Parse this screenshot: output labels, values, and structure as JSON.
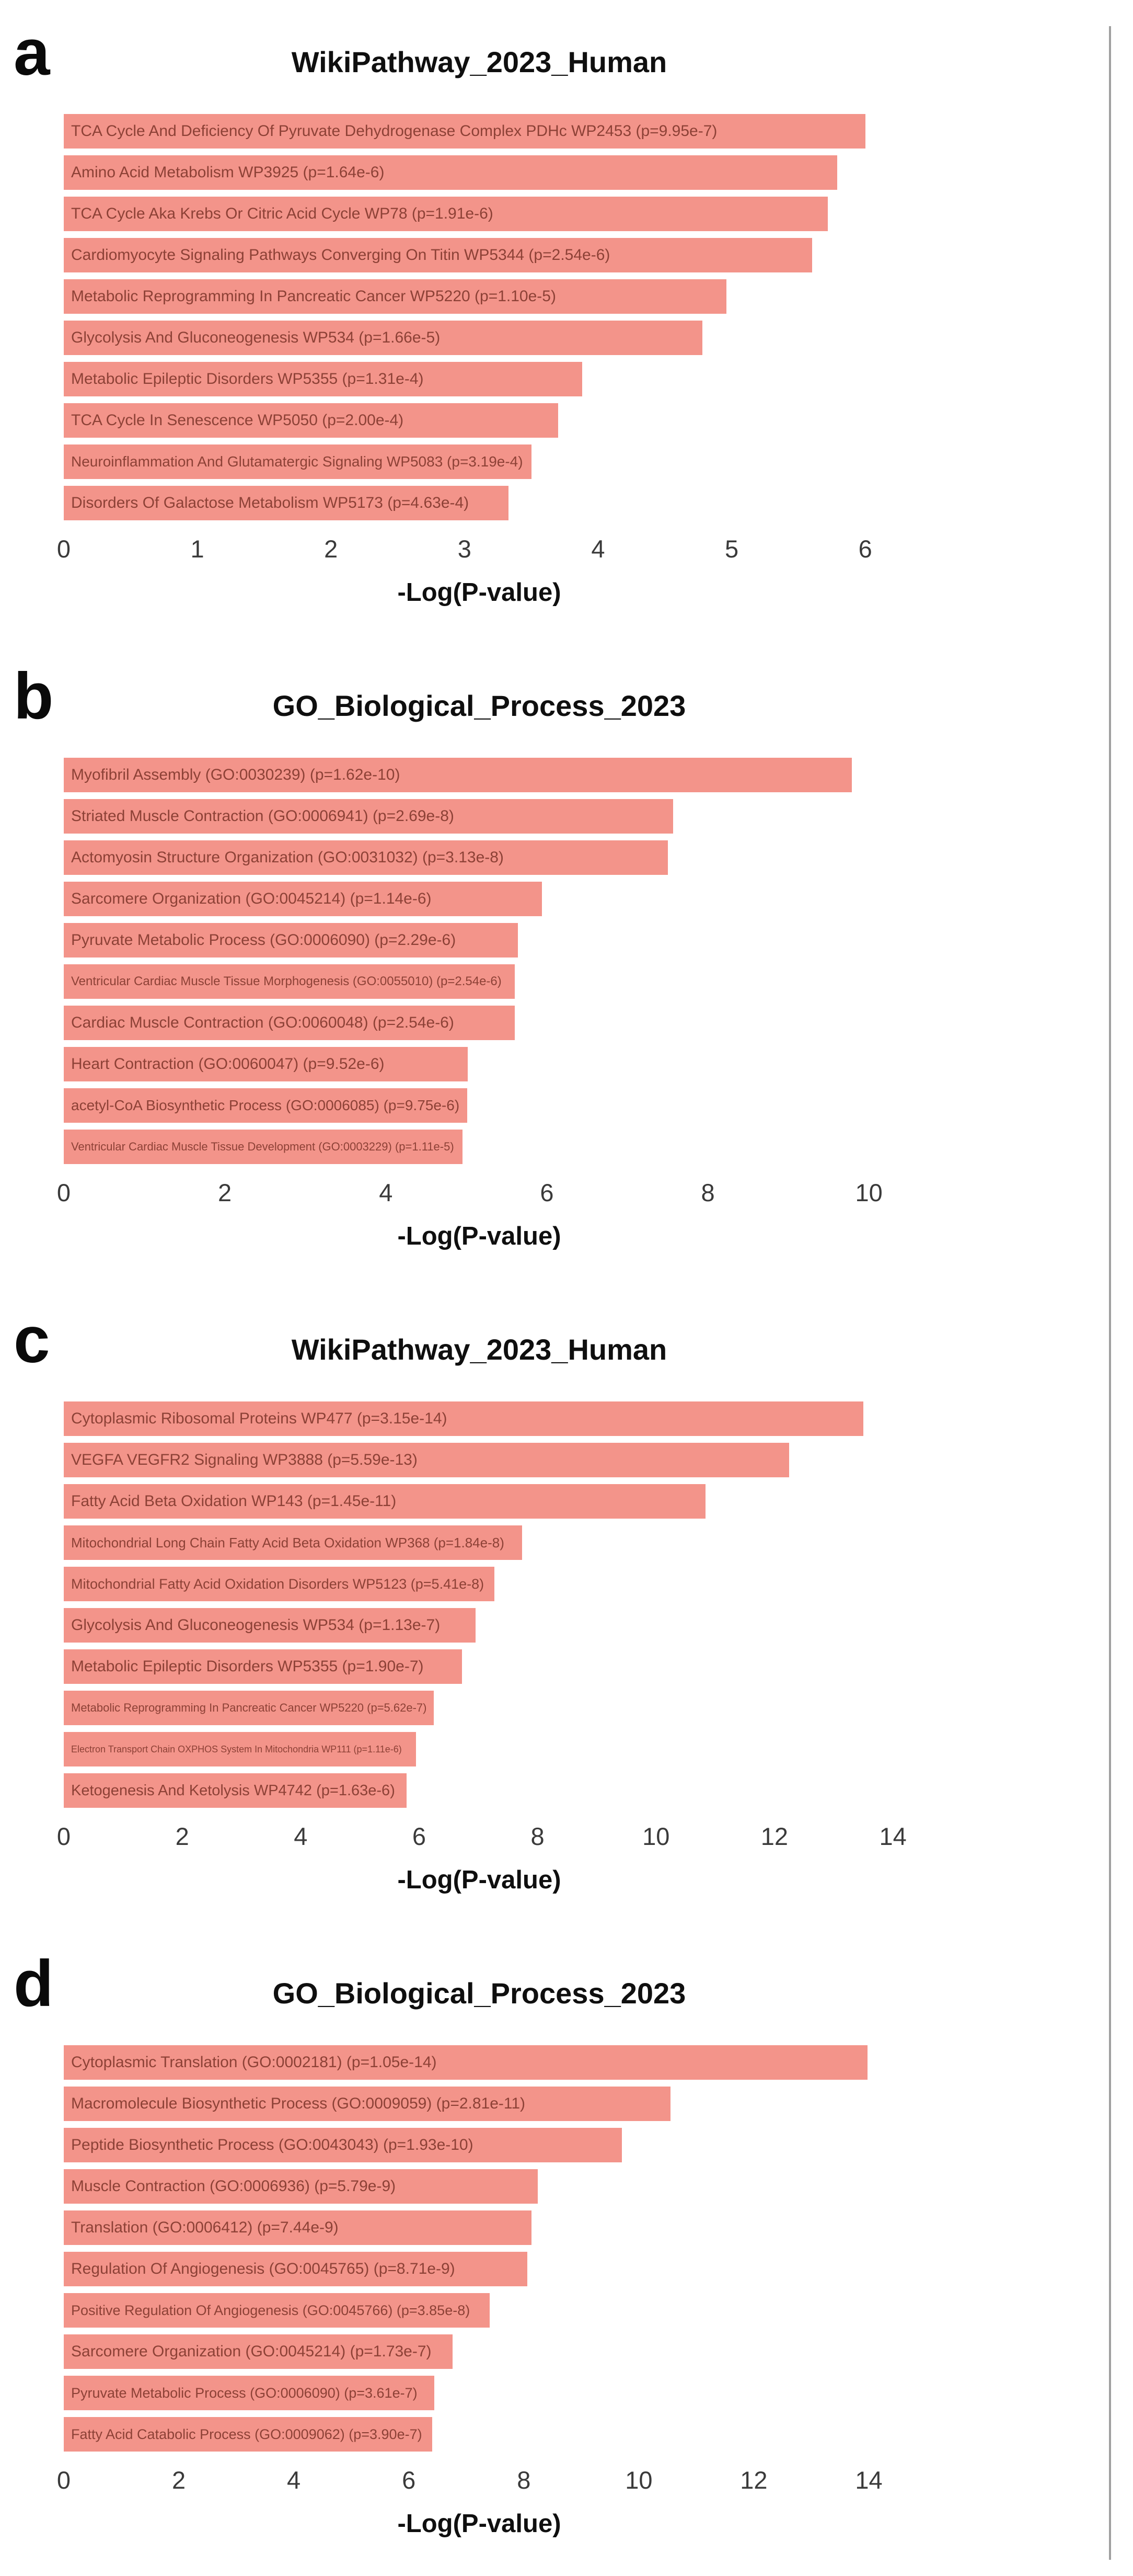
{
  "colors": {
    "bar_fill": "#f3948a",
    "bar_label_text": "#8d4136",
    "tick_label": "#3a3a3a",
    "divider_line": "#a0a0a0"
  },
  "chart_data": [
    {
      "type": "bar",
      "orientation": "horizontal",
      "panel_label": "a",
      "title": "WikiPathway_2023_Human",
      "xlabel": "-Log(P-value)",
      "xlim": [
        0,
        6.22
      ],
      "xticks": [
        0,
        1,
        2,
        3,
        4,
        5,
        6
      ],
      "grid": false,
      "legend": "none",
      "categories": [
        "TCA Cycle And Deficiency Of Pyruvate Dehydrogenase Complex PDHc WP2453 (p=9.95e-7)",
        "Amino Acid Metabolism WP3925 (p=1.64e-6)",
        "TCA Cycle Aka Krebs Or Citric Acid Cycle WP78 (p=1.91e-6)",
        "Cardiomyocyte Signaling Pathways Converging On Titin WP5344 (p=2.54e-6)",
        "Metabolic Reprogramming In Pancreatic Cancer WP5220 (p=1.10e-5)",
        "Glycolysis And Gluconeogenesis WP534 (p=1.66e-5)",
        "Metabolic Epileptic Disorders WP5355 (p=1.31e-4)",
        "TCA Cycle In Senescence WP5050 (p=2.00e-4)",
        "Neuroinflammation And Glutamatergic Signaling WP5083 (p=3.19e-4)",
        "Disorders Of Galactose Metabolism WP5173 (p=4.63e-4)"
      ],
      "values": [
        6.0,
        5.79,
        5.72,
        5.6,
        4.96,
        4.78,
        3.88,
        3.7,
        3.5,
        3.33
      ]
    },
    {
      "type": "bar",
      "orientation": "horizontal",
      "panel_label": "b",
      "title": "GO_Biological_Process_2023",
      "xlabel": "-Log(P-value)",
      "xlim": [
        0,
        10.32
      ],
      "xticks": [
        0,
        2,
        4,
        6,
        8,
        10
      ],
      "grid": false,
      "legend": "none",
      "categories": [
        "Myofibril Assembly (GO:0030239) (p=1.62e-10)",
        "Striated Muscle Contraction (GO:0006941) (p=2.69e-8)",
        "Actomyosin Structure Organization (GO:0031032) (p=3.13e-8)",
        "Sarcomere Organization (GO:0045214) (p=1.14e-6)",
        "Pyruvate Metabolic Process (GO:0006090) (p=2.29e-6)",
        "Ventricular Cardiac Muscle Tissue Morphogenesis (GO:0055010) (p=2.54e-6)",
        "Cardiac Muscle Contraction (GO:0060048) (p=2.54e-6)",
        "Heart Contraction (GO:0060047) (p=9.52e-6)",
        "acetyl-CoA Biosynthetic Process (GO:0006085) (p=9.75e-6)",
        "Ventricular Cardiac Muscle Tissue Development (GO:0003229) (p=1.11e-5)"
      ],
      "values": [
        9.79,
        7.57,
        7.5,
        5.94,
        5.64,
        5.6,
        5.6,
        5.02,
        5.01,
        4.95
      ]
    },
    {
      "type": "bar",
      "orientation": "horizontal",
      "panel_label": "c",
      "title": "WikiPathway_2023_Human",
      "xlabel": "-Log(P-value)",
      "xlim": [
        0,
        14.03
      ],
      "xticks": [
        0,
        2,
        4,
        6,
        8,
        10,
        12,
        14
      ],
      "grid": false,
      "legend": "none",
      "categories": [
        "Cytoplasmic Ribosomal Proteins WP477 (p=3.15e-14)",
        "VEGFA VEGFR2 Signaling WP3888 (p=5.59e-13)",
        "Fatty Acid Beta Oxidation WP143 (p=1.45e-11)",
        "Mitochondrial Long Chain Fatty Acid Beta Oxidation WP368 (p=1.84e-8)",
        "Mitochondrial Fatty Acid Oxidation Disorders WP5123 (p=5.41e-8)",
        "Glycolysis And Gluconeogenesis WP534 (p=1.13e-7)",
        "Metabolic Epileptic Disorders WP5355 (p=1.90e-7)",
        "Metabolic Reprogramming In Pancreatic Cancer WP5220 (p=5.62e-7)",
        "Electron Transport Chain OXPHOS System In Mitochondria WP111 (p=1.11e-6)",
        "Ketogenesis And Ketolysis WP4742 (p=1.63e-6)"
      ],
      "values": [
        13.5,
        12.25,
        10.84,
        7.74,
        7.27,
        6.95,
        6.72,
        6.25,
        5.95,
        5.79
      ]
    },
    {
      "type": "bar",
      "orientation": "horizontal",
      "panel_label": "d",
      "title": "GO_Biological_Process_2023",
      "xlabel": "-Log(P-value)",
      "xlim": [
        0,
        14.45
      ],
      "xticks": [
        0,
        2,
        4,
        6,
        8,
        10,
        12,
        14
      ],
      "grid": false,
      "legend": "none",
      "categories": [
        "Cytoplasmic Translation (GO:0002181) (p=1.05e-14)",
        "Macromolecule Biosynthetic Process (GO:0009059) (p=2.81e-11)",
        "Peptide Biosynthetic Process (GO:0043043) (p=1.93e-10)",
        "Muscle Contraction (GO:0006936) (p=5.79e-9)",
        "Translation (GO:0006412) (p=7.44e-9)",
        "Regulation Of Angiogenesis (GO:0045765) (p=8.71e-9)",
        "Positive Regulation Of Angiogenesis (GO:0045766) (p=3.85e-8)",
        "Sarcomere Organization (GO:0045214) (p=1.73e-7)",
        "Pyruvate Metabolic Process (GO:0006090) (p=3.61e-7)",
        "Fatty Acid Catabolic Process (GO:0009062) (p=3.90e-7)"
      ],
      "values": [
        13.98,
        10.55,
        9.71,
        8.24,
        8.13,
        8.06,
        7.41,
        6.76,
        6.44,
        6.41
      ]
    }
  ]
}
